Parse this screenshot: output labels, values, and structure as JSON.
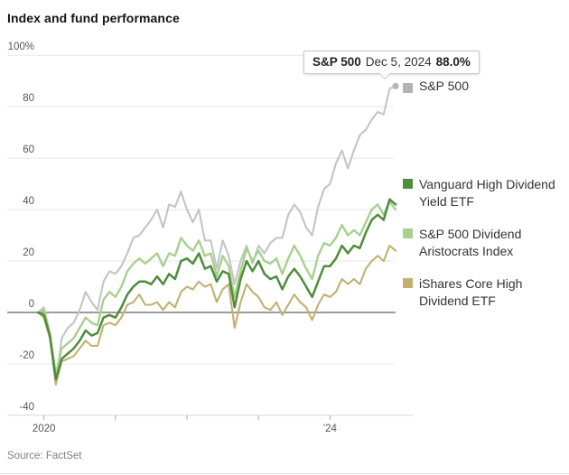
{
  "tooltip": {
    "series": "S&P 500",
    "date": "Dec 5, 2024",
    "value": "88.0%"
  },
  "legend": {
    "top": {
      "label": "S&P 500",
      "color": "#b3b3b3"
    },
    "items": [
      {
        "label": "Vanguard High Dividend Yield ETF",
        "color": "#4e8d3c"
      },
      {
        "label": "S&P 500 Dividend Aristocrats Index",
        "color": "#a8d08f"
      },
      {
        "label": "iShares Core High Dividend ETF",
        "color": "#c0b173"
      }
    ]
  },
  "chart_data": {
    "type": "line",
    "title": "Index and fund performance",
    "source": "Source: FactSet",
    "x_range": [
      "Dec 2019",
      "Dec 5, 2024"
    ],
    "x_unit": "month",
    "ylim": [
      -40,
      100
    ],
    "grid": true,
    "y_axis": {
      "ticks": [
        {
          "v": 100,
          "label": "100%"
        },
        {
          "v": 80,
          "label": "80"
        },
        {
          "v": 60,
          "label": "60"
        },
        {
          "v": 40,
          "label": "40"
        },
        {
          "v": 20,
          "label": "20"
        },
        {
          "v": 0,
          "label": "0"
        },
        {
          "v": -20,
          "label": "-20"
        },
        {
          "v": -40,
          "label": "-40"
        }
      ]
    },
    "x_axis": {
      "ticks": [
        {
          "month": 1,
          "label": "2020"
        },
        {
          "month": 13,
          "label": ""
        },
        {
          "month": 25,
          "label": ""
        },
        {
          "month": 37,
          "label": ""
        },
        {
          "month": 49,
          "label": "'24"
        }
      ]
    },
    "end_marker": {
      "series": "S&P 500",
      "value": 88
    },
    "series": [
      {
        "name": "S&P 500",
        "color": "#c4c4c4",
        "width": 2.1,
        "values": [
          0,
          2,
          -8,
          -28,
          -10,
          -6,
          -4,
          1,
          8,
          4,
          1,
          12,
          16,
          15,
          18,
          23,
          29,
          30,
          33,
          36,
          40,
          33,
          42,
          41,
          47,
          40,
          35,
          40,
          28,
          28,
          17,
          28,
          22,
          11,
          20,
          26,
          19,
          26,
          23,
          27,
          29,
          29,
          38,
          42,
          39,
          33,
          30,
          41,
          48,
          50,
          58,
          63,
          56,
          63,
          69,
          71,
          75,
          78,
          77,
          87,
          88
        ]
      },
      {
        "name": "iShares Core High Dividend ETF",
        "color": "#c0b173",
        "width": 2.1,
        "values": [
          0,
          -2,
          -10,
          -28,
          -19,
          -18,
          -17,
          -14,
          -11,
          -13,
          -13,
          -5,
          -4,
          -5,
          -2,
          3,
          4,
          7,
          3,
          3,
          4,
          1,
          4,
          2,
          8,
          10,
          9,
          12,
          10,
          11,
          4,
          9,
          11,
          -6,
          4,
          11,
          8,
          6,
          2,
          1,
          4,
          -1,
          3,
          7,
          4,
          2,
          -3,
          3,
          7,
          6,
          8,
          13,
          11,
          13,
          11,
          17,
          20,
          22,
          20,
          26,
          24
        ]
      },
      {
        "name": "S&P 500 Dividend Aristocrats Index",
        "color": "#a8d08f",
        "width": 2.4,
        "values": [
          0,
          1,
          -8,
          -24,
          -14,
          -12,
          -10,
          -6,
          -2,
          -4,
          -5,
          5,
          8,
          6,
          10,
          16,
          19,
          21,
          19,
          21,
          23,
          18,
          23,
          22,
          29,
          26,
          24,
          28,
          22,
          23,
          14,
          22,
          18,
          6,
          16,
          25,
          20,
          24,
          20,
          19,
          21,
          15,
          21,
          26,
          22,
          17,
          13,
          22,
          27,
          26,
          29,
          34,
          30,
          32,
          30,
          35,
          40,
          42,
          38,
          43,
          40
        ]
      },
      {
        "name": "Vanguard High Dividend Yield ETF",
        "color": "#4e8d3c",
        "width": 2.5,
        "values": [
          0,
          -1,
          -9,
          -26,
          -18,
          -16,
          -14,
          -11,
          -7,
          -9,
          -8,
          -2,
          -1,
          -2,
          2,
          7,
          10,
          12,
          12,
          11,
          14,
          11,
          15,
          13,
          20,
          21,
          19,
          23,
          17,
          18,
          12,
          16,
          15,
          2,
          13,
          20,
          16,
          20,
          15,
          13,
          14,
          9,
          14,
          17,
          14,
          10,
          6,
          12,
          18,
          18,
          21,
          26,
          23,
          26,
          25,
          31,
          36,
          38,
          36,
          44,
          42
        ]
      }
    ],
    "colors": {
      "grid": "#e7e7e7",
      "zero_line": "#8e8e8e",
      "axis_line": "#d6d6d6",
      "tick": "#a5a5a5",
      "dot": "#b5b5b5"
    }
  }
}
